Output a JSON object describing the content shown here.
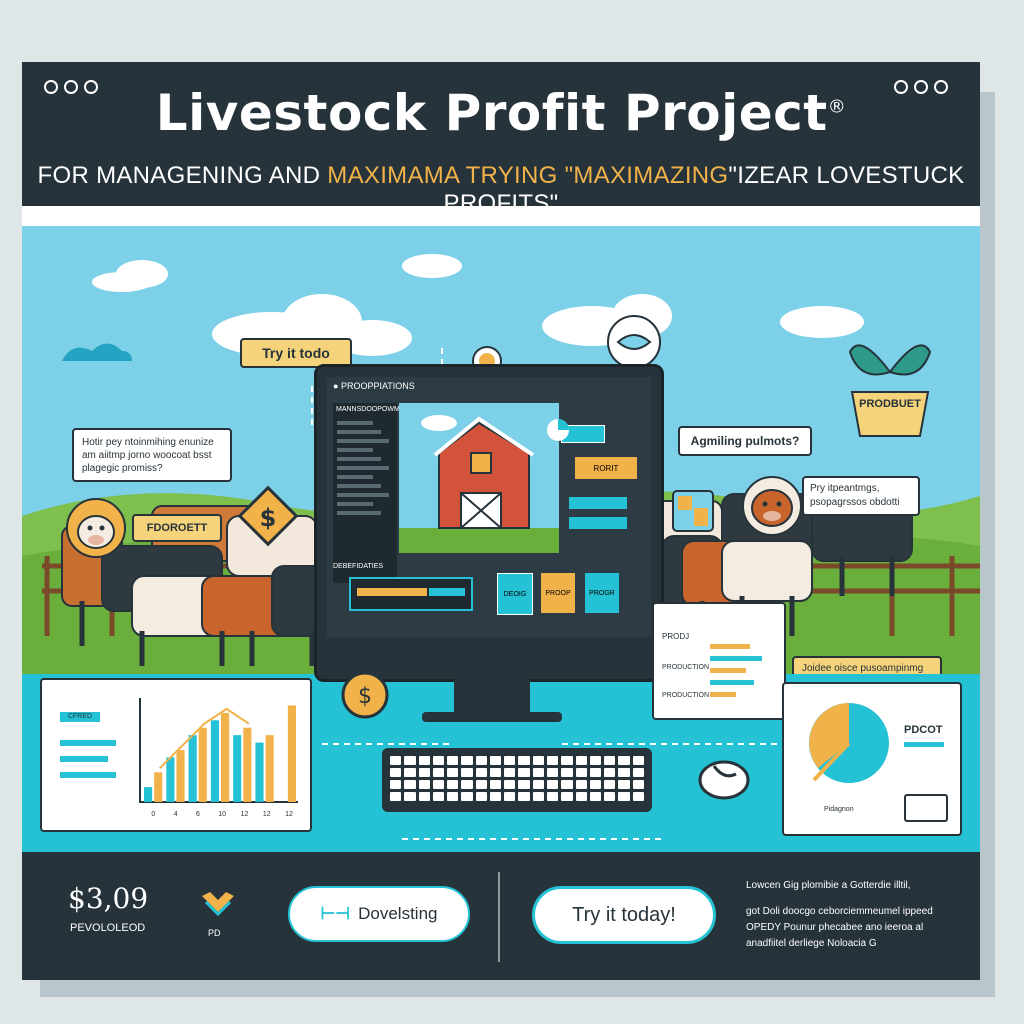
{
  "header": {
    "title": "Livestock Profit Project",
    "title_mark": "®",
    "subtitle_before": "FOR MANAGENING AND ",
    "subtitle_highlight": "MAXIMAMA TRYING \"MAXIMAZING",
    "subtitle_after": "\"IZEAR LOVESTUCK PROFITS\""
  },
  "scene": {
    "bubble_try": "Try it todo",
    "bubble_question": "Hotir pey ntoinmihing enunize\nam aiitmp jorno woocoat bsst\nplagegic promiss?",
    "cow_label": "FDOROETT",
    "bubble_aqm": "Agmiling pulmots?",
    "bubble_right": "Pry itpeantmgs,\npsopagrssos obdotti",
    "tag_right": "PRODBUET",
    "banner_right": "Joidee oisce pusoampinmg\npunoaiomal dlwagp blobis"
  },
  "monitor": {
    "app_title": "PROOPPIATIONS",
    "sidebar_heading": "MANNSDOOPOWMEITS",
    "sidebar_items": [
      "",
      "",
      "",
      "",
      "",
      "",
      "",
      "",
      "",
      "",
      ""
    ],
    "side_buttons": [
      "",
      "RORIT"
    ],
    "panel_label": "DEBEFIDATIES",
    "tiles": [
      "DEOIG",
      "PROOP",
      "PROGR"
    ]
  },
  "left_chart": {
    "legend_label": "CFRED",
    "tick_labels": [
      "0",
      "4",
      "6",
      "10",
      "12",
      "12",
      "12"
    ]
  },
  "right_panel": {
    "row_labels": [
      "PRODJ",
      "PRODUCTION",
      "PRODUCTION"
    ]
  },
  "pie_panel": {
    "label": "PDCOT",
    "caption": "Pidagnon"
  },
  "footer": {
    "price": "$3,09",
    "price_sub": "PEVOLOLEOD",
    "logo_caption": "PD",
    "button_developing": "Dovelsting",
    "button_try": "Try it today!",
    "info_line1": "Lowcen Gig plomibie a Gotterdie illtil,",
    "info_line2": "got Doli doocgo ceborciemmeumel ippeed",
    "info_line3": "OPEDY Pounur phecabee ano ieeroa al",
    "info_line4": "anadfiitel derliege Noloacia G"
  },
  "chart_data": {
    "type": "bar",
    "categories": [
      "0",
      "4",
      "6",
      "10",
      "12",
      "12",
      "12"
    ],
    "series": [
      {
        "values": [
          2,
          6,
          9,
          11,
          9,
          8,
          0
        ]
      },
      {
        "values": [
          4,
          7,
          10,
          12,
          10,
          9,
          13
        ]
      }
    ]
  },
  "colors": {
    "dark": "#26333a",
    "teal": "#24c2d4",
    "sky": "#7cd0e8",
    "orange": "#f2b24a",
    "grass": "#7fbf4d",
    "barn": "#d2533a"
  }
}
